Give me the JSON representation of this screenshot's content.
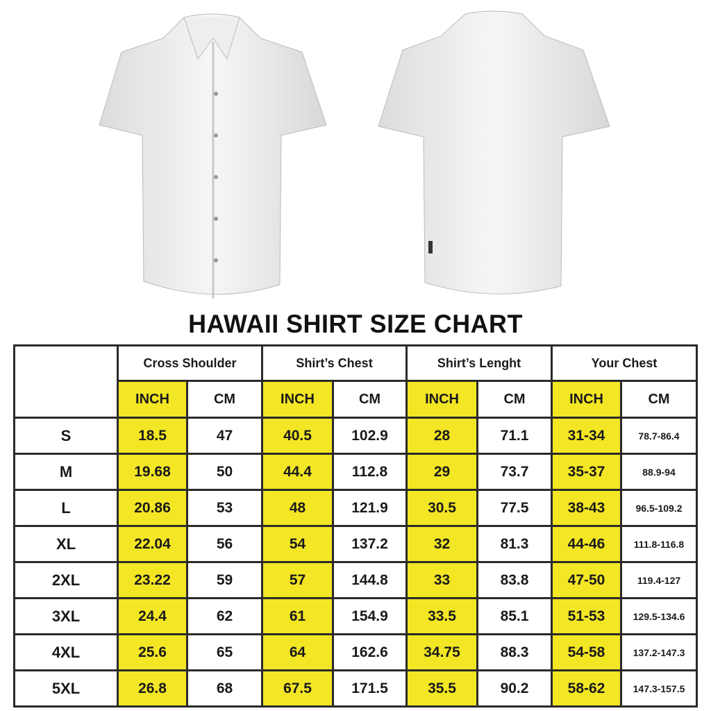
{
  "title": "HAWAII SHIRT SIZE CHART",
  "colors": {
    "highlight": "#f3e624",
    "border": "#2a2a2a"
  },
  "images": {
    "front": "white-shirt-front",
    "back": "white-shirt-back"
  },
  "chart_data": {
    "type": "table",
    "groups": [
      "Cross Shoulder",
      "Shirt’s Chest",
      "Shirt’s Lenght",
      "Your Chest"
    ],
    "units": [
      "INCH",
      "CM"
    ],
    "rows": [
      {
        "size": "S",
        "values": [
          "18.5",
          "47",
          "40.5",
          "102.9",
          "28",
          "71.1",
          "31-34",
          "78.7-86.4"
        ]
      },
      {
        "size": "M",
        "values": [
          "19.68",
          "50",
          "44.4",
          "112.8",
          "29",
          "73.7",
          "35-37",
          "88.9-94"
        ]
      },
      {
        "size": "L",
        "values": [
          "20.86",
          "53",
          "48",
          "121.9",
          "30.5",
          "77.5",
          "38-43",
          "96.5-109.2"
        ]
      },
      {
        "size": "XL",
        "values": [
          "22.04",
          "56",
          "54",
          "137.2",
          "32",
          "81.3",
          "44-46",
          "111.8-116.8"
        ]
      },
      {
        "size": "2XL",
        "values": [
          "23.22",
          "59",
          "57",
          "144.8",
          "33",
          "83.8",
          "47-50",
          "119.4-127"
        ]
      },
      {
        "size": "3XL",
        "values": [
          "24.4",
          "62",
          "61",
          "154.9",
          "33.5",
          "85.1",
          "51-53",
          "129.5-134.6"
        ]
      },
      {
        "size": "4XL",
        "values": [
          "25.6",
          "65",
          "64",
          "162.6",
          "34.75",
          "88.3",
          "54-58",
          "137.2-147.3"
        ]
      },
      {
        "size": "5XL",
        "values": [
          "26.8",
          "68",
          "67.5",
          "171.5",
          "35.5",
          "90.2",
          "58-62",
          "147.3-157.5"
        ]
      }
    ]
  }
}
